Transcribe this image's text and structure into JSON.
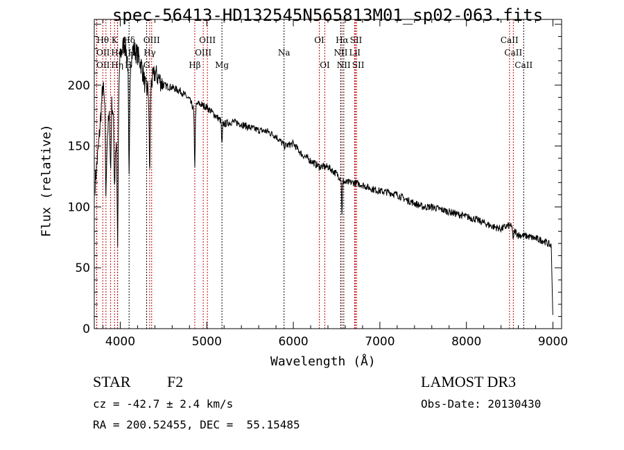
{
  "chart_data": {
    "type": "line",
    "title": "spec-56413-HD132545N565813M01_sp02-063.fits",
    "xlabel": "Wavelength (Å)",
    "ylabel": "Flux (relative)",
    "xlim": [
      3700,
      9100
    ],
    "ylim": [
      0,
      254
    ],
    "xticks": [
      4000,
      5000,
      6000,
      7000,
      8000,
      9000
    ],
    "yticks": [
      0,
      50,
      100,
      150,
      200
    ],
    "grid": false,
    "series": [
      {
        "name": "spectrum",
        "x": [
          3710,
          3750,
          3800,
          3850,
          3900,
          3950,
          4000,
          4050,
          4100,
          4150,
          4200,
          4250,
          4300,
          4350,
          4400,
          4450,
          4500,
          4600,
          4700,
          4800,
          4850,
          4900,
          5000,
          5100,
          5200,
          5300,
          5400,
          5500,
          5600,
          5700,
          5800,
          5900,
          6000,
          6100,
          6200,
          6300,
          6400,
          6500,
          6600,
          6700,
          6800,
          6900,
          7000,
          7100,
          7200,
          7300,
          7400,
          7500,
          7600,
          7700,
          7800,
          7900,
          8000,
          8100,
          8200,
          8300,
          8400,
          8500,
          8600,
          8700,
          8800,
          8900,
          8980,
          9000
        ],
        "y": [
          120,
          150,
          200,
          160,
          190,
          150,
          225,
          235,
          215,
          230,
          225,
          215,
          195,
          200,
          210,
          205,
          200,
          198,
          195,
          188,
          180,
          185,
          182,
          175,
          168,
          170,
          168,
          165,
          163,
          162,
          158,
          150,
          152,
          143,
          138,
          133,
          133,
          127,
          120,
          120,
          118,
          115,
          113,
          112,
          110,
          106,
          103,
          100,
          100,
          98,
          96,
          94,
          92,
          90,
          87,
          84,
          82,
          85,
          77,
          76,
          74,
          72,
          68,
          5
        ]
      }
    ],
    "absorption_features": [
      {
        "wavelength": 3835,
        "min_flux": 110
      },
      {
        "wavelength": 3889,
        "min_flux": 130
      },
      {
        "wavelength": 3934,
        "min_flux": 120
      },
      {
        "wavelength": 3970,
        "min_flux": 68
      },
      {
        "wavelength": 4102,
        "min_flux": 120
      },
      {
        "wavelength": 4340,
        "min_flux": 130
      },
      {
        "wavelength": 4861,
        "min_flux": 133
      },
      {
        "wavelength": 5175,
        "min_flux": 150
      },
      {
        "wavelength": 6563,
        "min_flux": 95
      },
      {
        "wavelength": 8542,
        "min_flux": 72
      }
    ],
    "line_markers": [
      {
        "label": "Hθ",
        "wavelength": 3798,
        "row": 1,
        "color": "#c00000"
      },
      {
        "label": "K",
        "wavelength": 3934,
        "row": 1,
        "color": "#c00000"
      },
      {
        "label": "Hδ",
        "wavelength": 4102,
        "row": 1,
        "color": "#000000"
      },
      {
        "label": "OIII",
        "wavelength": 4363,
        "row": 1,
        "color": "#c00000"
      },
      {
        "label": "OIII",
        "wavelength": 5007,
        "row": 1,
        "color": "#c00000"
      },
      {
        "label": "OI",
        "wavelength": 6300,
        "row": 1,
        "color": "#c00000"
      },
      {
        "label": "Hα",
        "wavelength": 6563,
        "row": 1,
        "color": "#c00000"
      },
      {
        "label": "SII",
        "wavelength": 6717,
        "row": 1,
        "color": "#c00000"
      },
      {
        "label": "CaII",
        "wavelength": 8498,
        "row": 1,
        "color": "#c00000"
      },
      {
        "label": "OII",
        "wavelength": 3727,
        "row": 2,
        "color": "#c00000"
      },
      {
        "label": "HeI",
        "wavelength": 3889,
        "row": 2,
        "color": "#c00000"
      },
      {
        "label": "Hε",
        "wavelength": 3970,
        "row": 2,
        "color": "#c00000"
      },
      {
        "label": "Hγ",
        "wavelength": 4340,
        "row": 2,
        "color": "#c00000"
      },
      {
        "label": "OIII",
        "wavelength": 4959,
        "row": 2,
        "color": "#c00000"
      },
      {
        "label": "Na",
        "wavelength": 5893,
        "row": 2,
        "color": "#000000"
      },
      {
        "label": "NII",
        "wavelength": 6548,
        "row": 2,
        "color": "#000000"
      },
      {
        "label": "LiI",
        "wavelength": 6708,
        "row": 2,
        "color": "#c00000"
      },
      {
        "label": "CaII",
        "wavelength": 8542,
        "row": 2,
        "color": "#c00000"
      },
      {
        "label": "OII",
        "wavelength": 3729,
        "row": 3,
        "color": "#c00000"
      },
      {
        "label": "Hη",
        "wavelength": 3835,
        "row": 3,
        "color": "#c00000"
      },
      {
        "label": "H",
        "wavelength": 3968,
        "row": 3,
        "color": "#c00000"
      },
      {
        "label": "G",
        "wavelength": 4305,
        "row": 3,
        "color": "#000000"
      },
      {
        "label": "Hβ",
        "wavelength": 4861,
        "row": 3,
        "color": "#c00000"
      },
      {
        "label": "Mg",
        "wavelength": 5175,
        "row": 3,
        "color": "#000000"
      },
      {
        "label": "OI",
        "wavelength": 6364,
        "row": 3,
        "color": "#c00000"
      },
      {
        "label": "NII",
        "wavelength": 6583,
        "row": 3,
        "color": "#000000"
      },
      {
        "label": "SII",
        "wavelength": 6731,
        "row": 3,
        "color": "#c00000"
      },
      {
        "label": "CaII",
        "wavelength": 8662,
        "row": 3,
        "color": "#000000"
      }
    ]
  },
  "info": {
    "object_class": "STAR",
    "subclass": "F2",
    "survey": "LAMOST DR3",
    "cz": "cz = -42.7 ± 2.4 km/s",
    "obs_date": "Obs-Date: 20130430",
    "coords": "RA = 200.52455, DEC =  55.15485"
  }
}
